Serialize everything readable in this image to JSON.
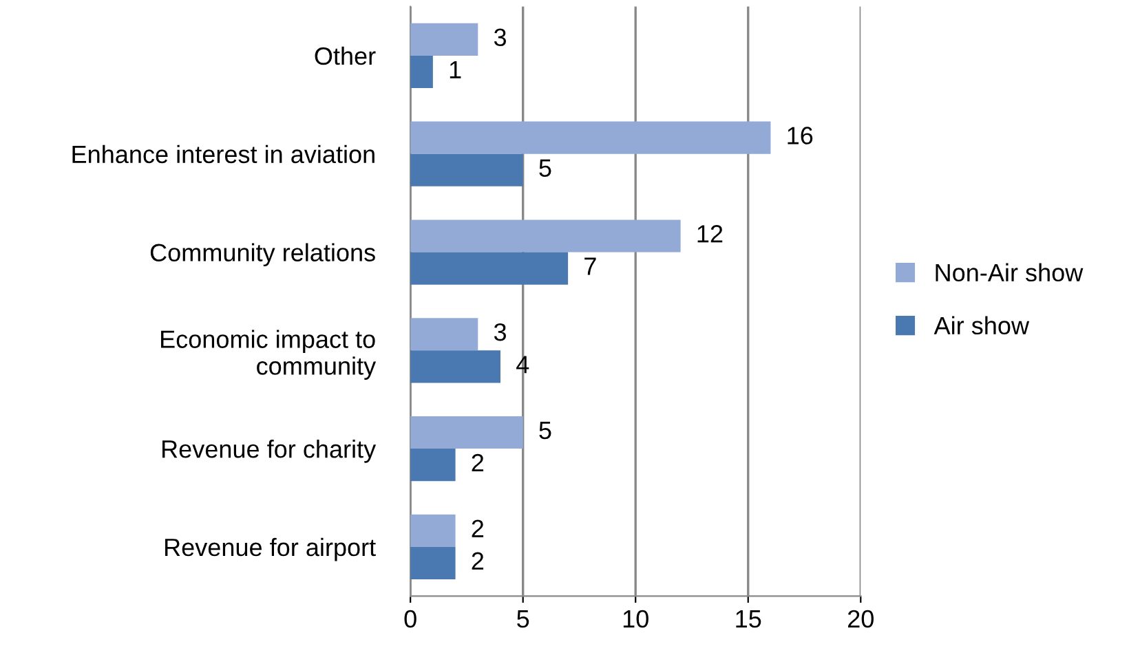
{
  "chart_data": {
    "type": "bar",
    "orientation": "horizontal",
    "categories": [
      "Other",
      "Enhance interest in aviation",
      "Community relations",
      "Economic impact to\ncommunity",
      "Revenue for charity",
      "Revenue for airport"
    ],
    "series": [
      {
        "name": "Non-Air show",
        "color": "#94aad6",
        "values": [
          3,
          16,
          12,
          3,
          5,
          2
        ]
      },
      {
        "name": "Air show",
        "color": "#4a78b0",
        "values": [
          1,
          5,
          7,
          4,
          2,
          2
        ]
      }
    ],
    "xlim": [
      0,
      20
    ],
    "xticks": [
      0,
      5,
      10,
      15,
      20
    ],
    "grid": "x",
    "legend": "right",
    "data_labels": true
  }
}
